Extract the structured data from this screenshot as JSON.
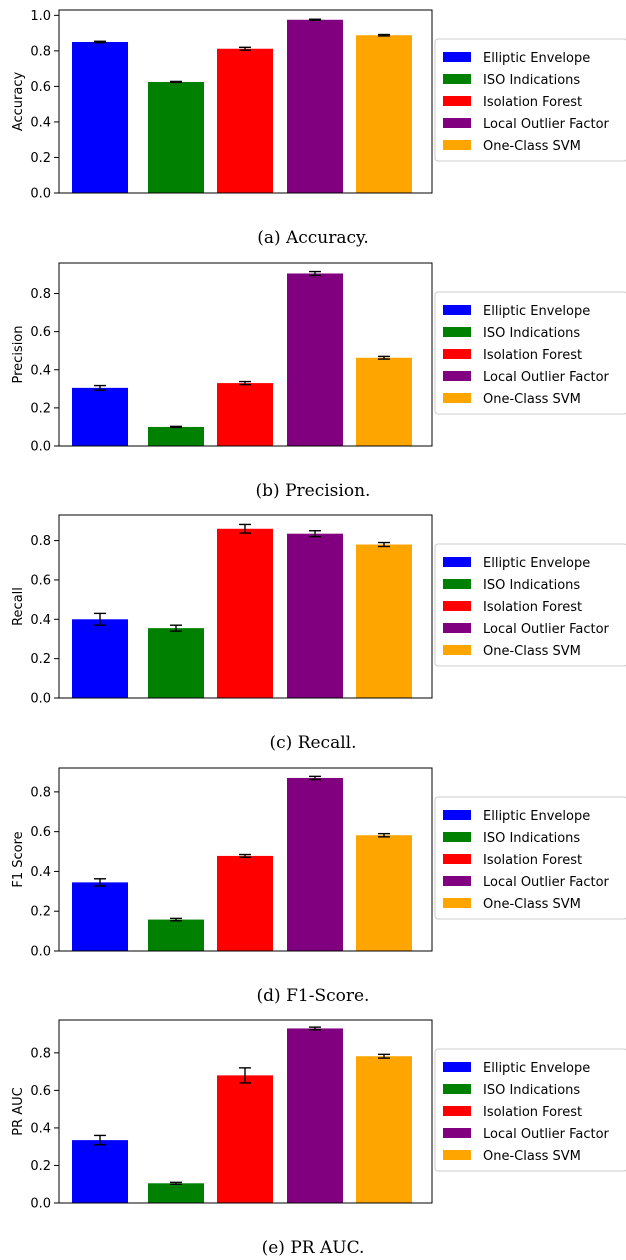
{
  "legend": {
    "placement": "right",
    "entries": [
      {
        "name": "Elliptic Envelope",
        "color": "#0000ff"
      },
      {
        "name": "ISO Indications",
        "color": "#008000"
      },
      {
        "name": "Isolation Forest",
        "color": "#ff0000"
      },
      {
        "name": "Local Outlier Factor",
        "color": "#800080"
      },
      {
        "name": "One-Class SVM",
        "color": "#ffa500"
      }
    ]
  },
  "chart_data": [
    {
      "type": "bar",
      "caption": "(a) Accuracy.",
      "ylabel": "Accuracy",
      "categories": [
        "Elliptic Envelope",
        "ISO Indications",
        "Isolation Forest",
        "Local Outlier Factor",
        "One-Class SVM"
      ],
      "values": [
        0.85,
        0.625,
        0.812,
        0.975,
        0.888
      ],
      "errors": [
        0.004,
        0.003,
        0.008,
        0.003,
        0.004
      ],
      "colors": [
        "#0000ff",
        "#008000",
        "#ff0000",
        "#800080",
        "#ffa500"
      ],
      "ylim": [
        0,
        1.03
      ],
      "yticks": [
        "0.0",
        "0.2",
        "0.4",
        "0.6",
        "0.8",
        "1.0"
      ],
      "xticks": [],
      "grid": false
    },
    {
      "type": "bar",
      "caption": "(b) Precision.",
      "ylabel": "Precision",
      "categories": [
        "Elliptic Envelope",
        "ISO Indications",
        "Isolation Forest",
        "Local Outlier Factor",
        "One-Class SVM"
      ],
      "values": [
        0.305,
        0.1,
        0.33,
        0.905,
        0.463
      ],
      "errors": [
        0.012,
        0.003,
        0.008,
        0.01,
        0.007
      ],
      "colors": [
        "#0000ff",
        "#008000",
        "#ff0000",
        "#800080",
        "#ffa500"
      ],
      "ylim": [
        0,
        0.96
      ],
      "yticks": [
        "0.0",
        "0.2",
        "0.4",
        "0.6",
        "0.8"
      ],
      "xticks": [],
      "grid": false
    },
    {
      "type": "bar",
      "caption": "(c) Recall.",
      "ylabel": "Recall",
      "categories": [
        "Elliptic Envelope",
        "ISO Indications",
        "Isolation Forest",
        "Local Outlier Factor",
        "One-Class SVM"
      ],
      "values": [
        0.4,
        0.355,
        0.86,
        0.835,
        0.78
      ],
      "errors": [
        0.03,
        0.015,
        0.022,
        0.015,
        0.01
      ],
      "colors": [
        "#0000ff",
        "#008000",
        "#ff0000",
        "#800080",
        "#ffa500"
      ],
      "ylim": [
        0,
        0.93
      ],
      "yticks": [
        "0.0",
        "0.2",
        "0.4",
        "0.6",
        "0.8"
      ],
      "xticks": [],
      "grid": false
    },
    {
      "type": "bar",
      "caption": "(d) F1-Score.",
      "ylabel": "F1 Score",
      "categories": [
        "Elliptic Envelope",
        "ISO Indications",
        "Isolation Forest",
        "Local Outlier Factor",
        "One-Class SVM"
      ],
      "values": [
        0.345,
        0.158,
        0.478,
        0.87,
        0.582
      ],
      "errors": [
        0.018,
        0.006,
        0.007,
        0.008,
        0.008
      ],
      "colors": [
        "#0000ff",
        "#008000",
        "#ff0000",
        "#800080",
        "#ffa500"
      ],
      "ylim": [
        0,
        0.92
      ],
      "yticks": [
        "0.0",
        "0.2",
        "0.4",
        "0.6",
        "0.8"
      ],
      "xticks": [],
      "grid": false
    },
    {
      "type": "bar",
      "caption": "(e) PR AUC.",
      "ylabel": "PR AUC",
      "categories": [
        "Elliptic Envelope",
        "ISO Indications",
        "Isolation Forest",
        "Local Outlier Factor",
        "One-Class SVM"
      ],
      "values": [
        0.335,
        0.105,
        0.68,
        0.93,
        0.782
      ],
      "errors": [
        0.025,
        0.005,
        0.04,
        0.007,
        0.01
      ],
      "colors": [
        "#0000ff",
        "#008000",
        "#ff0000",
        "#800080",
        "#ffa500"
      ],
      "ylim": [
        0,
        0.975
      ],
      "yticks": [
        "0.0",
        "0.2",
        "0.4",
        "0.6",
        "0.8"
      ],
      "xticks": [],
      "grid": false
    }
  ]
}
